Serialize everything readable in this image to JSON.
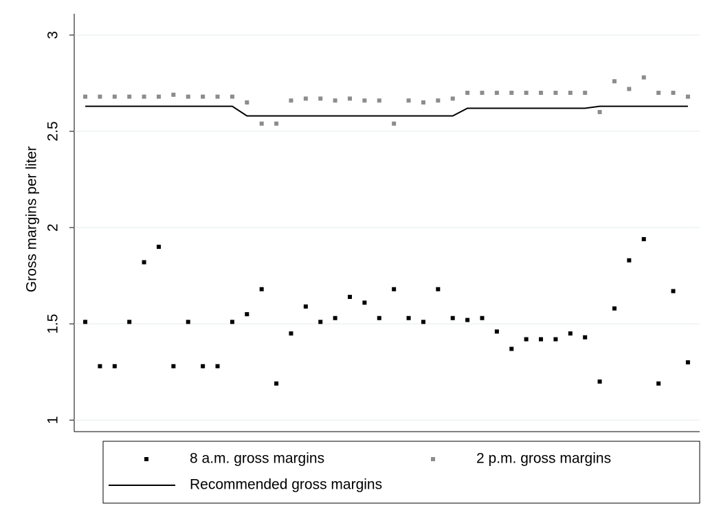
{
  "chart_data": {
    "type": "scatter",
    "y_label": "Gross margins per liter",
    "x": [
      1,
      2,
      3,
      4,
      5,
      6,
      7,
      8,
      9,
      10,
      11,
      12,
      13,
      14,
      15,
      16,
      17,
      18,
      19,
      20,
      21,
      22,
      23,
      24,
      25,
      26,
      27,
      28,
      29,
      30,
      31,
      32,
      33,
      34,
      35,
      36,
      37,
      38,
      39,
      40,
      41,
      42
    ],
    "xlim": [
      0.25,
      42.8
    ],
    "ylim": [
      0.94,
      3.1
    ],
    "yticks": [
      1,
      1.5,
      2,
      2.5,
      3
    ],
    "grid": true,
    "series": [
      {
        "name": "8 a.m. gross margins",
        "color": "#000000",
        "kind": "points",
        "values": [
          1.51,
          1.28,
          1.28,
          1.51,
          1.82,
          1.9,
          1.28,
          1.51,
          1.28,
          1.28,
          1.51,
          1.55,
          1.68,
          1.19,
          1.45,
          1.59,
          1.51,
          1.53,
          1.64,
          1.61,
          1.53,
          1.68,
          1.53,
          1.51,
          1.68,
          1.53,
          1.52,
          1.53,
          1.46,
          1.37,
          1.42,
          1.42,
          1.42,
          1.45,
          1.43,
          1.2,
          1.58,
          1.83,
          1.94,
          1.19,
          1.67,
          1.3
        ]
      },
      {
        "name": "2 p.m. gross margins",
        "color": "#8c8c8c",
        "kind": "points",
        "values": [
          2.68,
          2.68,
          2.68,
          2.68,
          2.68,
          2.68,
          2.69,
          2.68,
          2.68,
          2.68,
          2.68,
          2.65,
          2.54,
          2.54,
          2.66,
          2.67,
          2.67,
          2.66,
          2.67,
          2.66,
          2.66,
          2.54,
          2.66,
          2.65,
          2.66,
          2.67,
          2.7,
          2.7,
          2.7,
          2.7,
          2.7,
          2.7,
          2.7,
          2.7,
          2.7,
          2.6,
          2.76,
          2.72,
          2.78,
          2.7,
          2.7,
          2.68
        ]
      },
      {
        "name": "Recommended gross margins",
        "color": "#000000",
        "kind": "line",
        "values": [
          2.63,
          2.63,
          2.63,
          2.63,
          2.63,
          2.63,
          2.63,
          2.63,
          2.63,
          2.63,
          2.63,
          2.58,
          2.58,
          2.58,
          2.58,
          2.58,
          2.58,
          2.58,
          2.58,
          2.58,
          2.58,
          2.58,
          2.58,
          2.58,
          2.58,
          2.58,
          2.62,
          2.62,
          2.62,
          2.62,
          2.62,
          2.62,
          2.62,
          2.62,
          2.62,
          2.63,
          2.63,
          2.63,
          2.63,
          2.63,
          2.63,
          2.63
        ]
      }
    ]
  }
}
